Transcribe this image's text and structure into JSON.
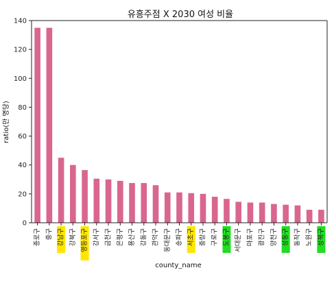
{
  "chart_data": {
    "type": "bar",
    "title": "유흥주점 X 2030 여성 비율",
    "xlabel": "county_name",
    "ylabel": "ratio(만 명당)",
    "ylim": [
      0,
      140
    ],
    "yticks": [
      0,
      20,
      40,
      60,
      80,
      100,
      120,
      140
    ],
    "bar_color": "#d9668f",
    "grid": false,
    "categories": [
      "종로구",
      "중구",
      "강남구",
      "강북구",
      "영등포구",
      "강서구",
      "금천구",
      "은평구",
      "용산구",
      "강동구",
      "관악구",
      "동대문구",
      "송파구",
      "서초구",
      "중랑구",
      "구로구",
      "도봉구",
      "서대문구",
      "마포구",
      "광진구",
      "양천구",
      "성동구",
      "동작구",
      "노원구",
      "성북구"
    ],
    "values": [
      135,
      135,
      45,
      40,
      36.5,
      30.5,
      30,
      29,
      27.5,
      27.5,
      26,
      21,
      21,
      20.5,
      20,
      18,
      16.5,
      14.5,
      14,
      14,
      13,
      12.5,
      12,
      9,
      9
    ],
    "highlights": [
      {
        "category": "강남구",
        "color": "#ffe600"
      },
      {
        "category": "영등포구",
        "color": "#ffe600"
      },
      {
        "category": "서초구",
        "color": "#ffe600"
      },
      {
        "category": "도봉구",
        "color": "#22dd22"
      },
      {
        "category": "성동구",
        "color": "#22dd22"
      },
      {
        "category": "성북구",
        "color": "#22dd22"
      }
    ]
  }
}
